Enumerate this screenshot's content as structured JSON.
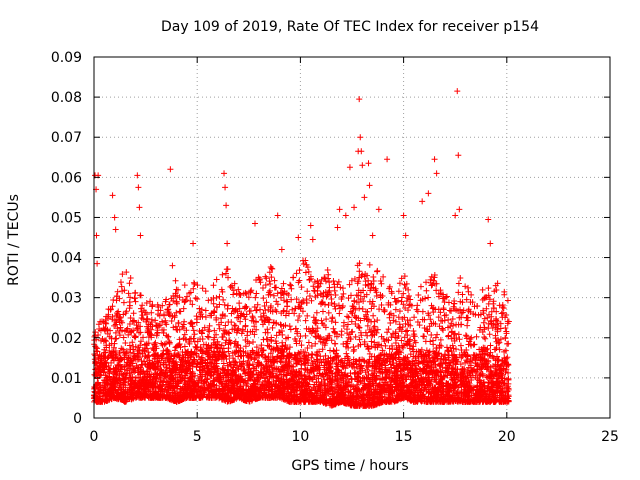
{
  "chart_data": {
    "type": "scatter",
    "title": "Day 109 of 2019, Rate Of TEC Index for receiver p154",
    "xlabel": "GPS time / hours",
    "ylabel": "ROTI / TECUs",
    "xlim": [
      0,
      25
    ],
    "ylim": [
      0,
      0.09
    ],
    "x_ticks": [
      0,
      5,
      10,
      15,
      20,
      25
    ],
    "y_ticks": [
      0,
      0.01,
      0.02,
      0.03,
      0.04,
      0.05,
      0.06,
      0.07,
      0.08,
      0.09
    ],
    "x_tick_labels": [
      "0",
      "5",
      "10",
      "15",
      "20",
      "25"
    ],
    "y_tick_labels": [
      "0",
      "0.01",
      "0.02",
      "0.03",
      "0.04",
      "0.05",
      "0.06",
      "0.07",
      "0.08",
      "0.09"
    ],
    "grid": true,
    "marker": "+",
    "color": "#ff0000",
    "data_x_range": [
      0,
      20.1
    ],
    "series": [
      {
        "name": "ROTI",
        "note": "dense cloud of several thousand samples, mostly 0.003-0.03 TECU/min between 0 and 20.1 h; listed points are the visible outliers/peaks",
        "points": [
          [
            0.05,
            0.0605
          ],
          [
            0.1,
            0.057
          ],
          [
            0.12,
            0.0455
          ],
          [
            0.15,
            0.0385
          ],
          [
            0.2,
            0.0605
          ],
          [
            0.9,
            0.0555
          ],
          [
            1.0,
            0.05
          ],
          [
            1.05,
            0.047
          ],
          [
            2.1,
            0.0605
          ],
          [
            2.15,
            0.0575
          ],
          [
            2.2,
            0.0525
          ],
          [
            2.25,
            0.0455
          ],
          [
            3.7,
            0.062
          ],
          [
            3.8,
            0.038
          ],
          [
            4.8,
            0.0435
          ],
          [
            6.3,
            0.061
          ],
          [
            6.35,
            0.0575
          ],
          [
            6.4,
            0.053
          ],
          [
            6.45,
            0.0435
          ],
          [
            7.8,
            0.0485
          ],
          [
            8.9,
            0.0505
          ],
          [
            9.1,
            0.042
          ],
          [
            9.9,
            0.045
          ],
          [
            10.5,
            0.048
          ],
          [
            10.6,
            0.0445
          ],
          [
            11.8,
            0.0475
          ],
          [
            11.9,
            0.052
          ],
          [
            12.2,
            0.0505
          ],
          [
            12.4,
            0.0625
          ],
          [
            12.6,
            0.0525
          ],
          [
            12.8,
            0.0665
          ],
          [
            12.85,
            0.0795
          ],
          [
            12.9,
            0.07
          ],
          [
            12.95,
            0.0665
          ],
          [
            13.0,
            0.063
          ],
          [
            13.1,
            0.055
          ],
          [
            13.3,
            0.0635
          ],
          [
            13.35,
            0.058
          ],
          [
            13.5,
            0.0455
          ],
          [
            13.8,
            0.052
          ],
          [
            14.2,
            0.0645
          ],
          [
            15.0,
            0.0505
          ],
          [
            15.1,
            0.0455
          ],
          [
            15.9,
            0.054
          ],
          [
            16.2,
            0.056
          ],
          [
            16.5,
            0.0645
          ],
          [
            16.6,
            0.061
          ],
          [
            17.5,
            0.0505
          ],
          [
            17.6,
            0.0815
          ],
          [
            17.65,
            0.0655
          ],
          [
            17.7,
            0.052
          ],
          [
            19.1,
            0.0495
          ],
          [
            19.2,
            0.0435
          ]
        ],
        "envelope": {
          "description": "approximate upper and lower bounds of the dense point cloud vs time",
          "x": [
            0,
            0.5,
            1,
            1.5,
            2,
            2.5,
            3,
            3.5,
            4,
            4.5,
            5,
            5.5,
            6,
            6.5,
            7,
            7.5,
            8,
            8.5,
            9,
            9.5,
            10,
            10.5,
            11,
            11.5,
            12,
            12.5,
            13,
            13.5,
            14,
            14.5,
            15,
            15.5,
            16,
            16.5,
            17,
            17.5,
            18,
            18.5,
            19,
            19.5,
            20,
            20.1
          ],
          "upper": [
            0.022,
            0.026,
            0.03,
            0.038,
            0.034,
            0.03,
            0.028,
            0.03,
            0.035,
            0.036,
            0.034,
            0.033,
            0.036,
            0.038,
            0.032,
            0.031,
            0.036,
            0.038,
            0.036,
            0.034,
            0.04,
            0.04,
            0.036,
            0.038,
            0.034,
            0.036,
            0.04,
            0.039,
            0.036,
            0.032,
            0.036,
            0.032,
            0.034,
            0.036,
            0.03,
            0.032,
            0.038,
            0.03,
            0.033,
            0.034,
            0.031,
            0.03
          ],
          "lower": [
            0.004,
            0.004,
            0.005,
            0.004,
            0.005,
            0.005,
            0.005,
            0.005,
            0.004,
            0.005,
            0.005,
            0.005,
            0.005,
            0.004,
            0.005,
            0.004,
            0.005,
            0.005,
            0.005,
            0.004,
            0.004,
            0.004,
            0.004,
            0.003,
            0.004,
            0.003,
            0.003,
            0.003,
            0.004,
            0.004,
            0.005,
            0.004,
            0.004,
            0.004,
            0.004,
            0.004,
            0.004,
            0.004,
            0.004,
            0.004,
            0.004,
            0.004
          ]
        }
      }
    ]
  }
}
